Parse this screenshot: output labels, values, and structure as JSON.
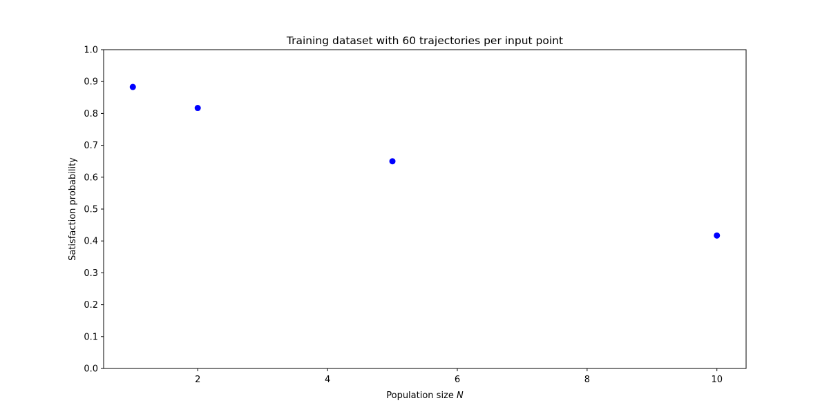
{
  "chart_data": {
    "type": "scatter",
    "title": "Training dataset with 60 trajectories per input point",
    "xlabel": "Population size",
    "xlabel_symbol": "N",
    "ylabel": "Satisfaction probability",
    "xlim": [
      0.55,
      10.45
    ],
    "ylim": [
      0.0,
      1.0
    ],
    "x_ticks": [
      2,
      4,
      6,
      8,
      10
    ],
    "y_ticks": [
      0.0,
      0.1,
      0.2,
      0.3,
      0.4,
      0.5,
      0.6,
      0.7,
      0.8,
      0.9,
      1.0
    ],
    "x_tick_labels": [
      "2",
      "4",
      "6",
      "8",
      "10"
    ],
    "y_tick_labels": [
      "0.0",
      "0.1",
      "0.2",
      "0.3",
      "0.4",
      "0.5",
      "0.6",
      "0.7",
      "0.8",
      "0.9",
      "1.0"
    ],
    "grid": false,
    "legend": false,
    "marker_color": "#0000ff",
    "series": [
      {
        "x": [
          1,
          2,
          5,
          10
        ],
        "y": [
          0.883,
          0.817,
          0.65,
          0.417
        ]
      }
    ]
  }
}
